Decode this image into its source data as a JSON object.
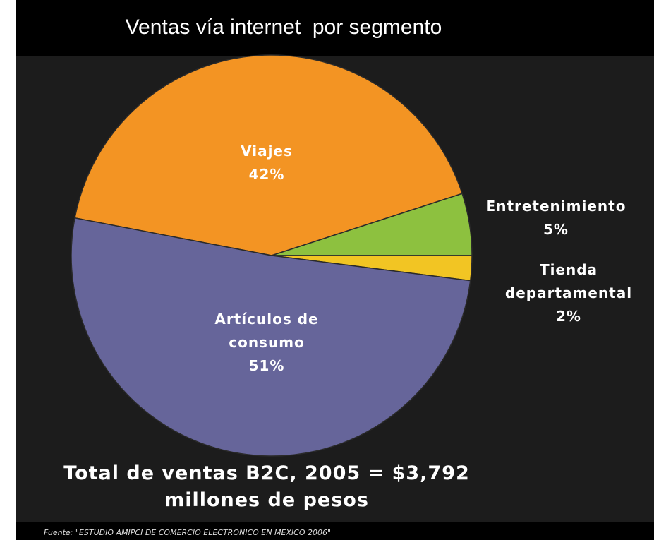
{
  "chart_data": {
    "type": "pie",
    "title": "Ventas vía internet  por segmento",
    "categories": [
      "Viajes",
      "Entretenimiento",
      "Tienda departamental",
      "Artículos de consumo"
    ],
    "values": [
      42,
      5,
      2,
      51
    ],
    "value_labels": [
      "42%",
      "5%",
      "2%",
      "51%"
    ],
    "colors": [
      "#f39423",
      "#8dc13f",
      "#f2c523",
      "#66659a"
    ],
    "annotation": [
      "Total de ventas B2C, 2005 = $3,792",
      "millones de pesos"
    ],
    "source": "Fuente: \"ESTUDIO AMIPCI DE COMERCIO ELECTRONICO EN MEXICO 2006\""
  }
}
